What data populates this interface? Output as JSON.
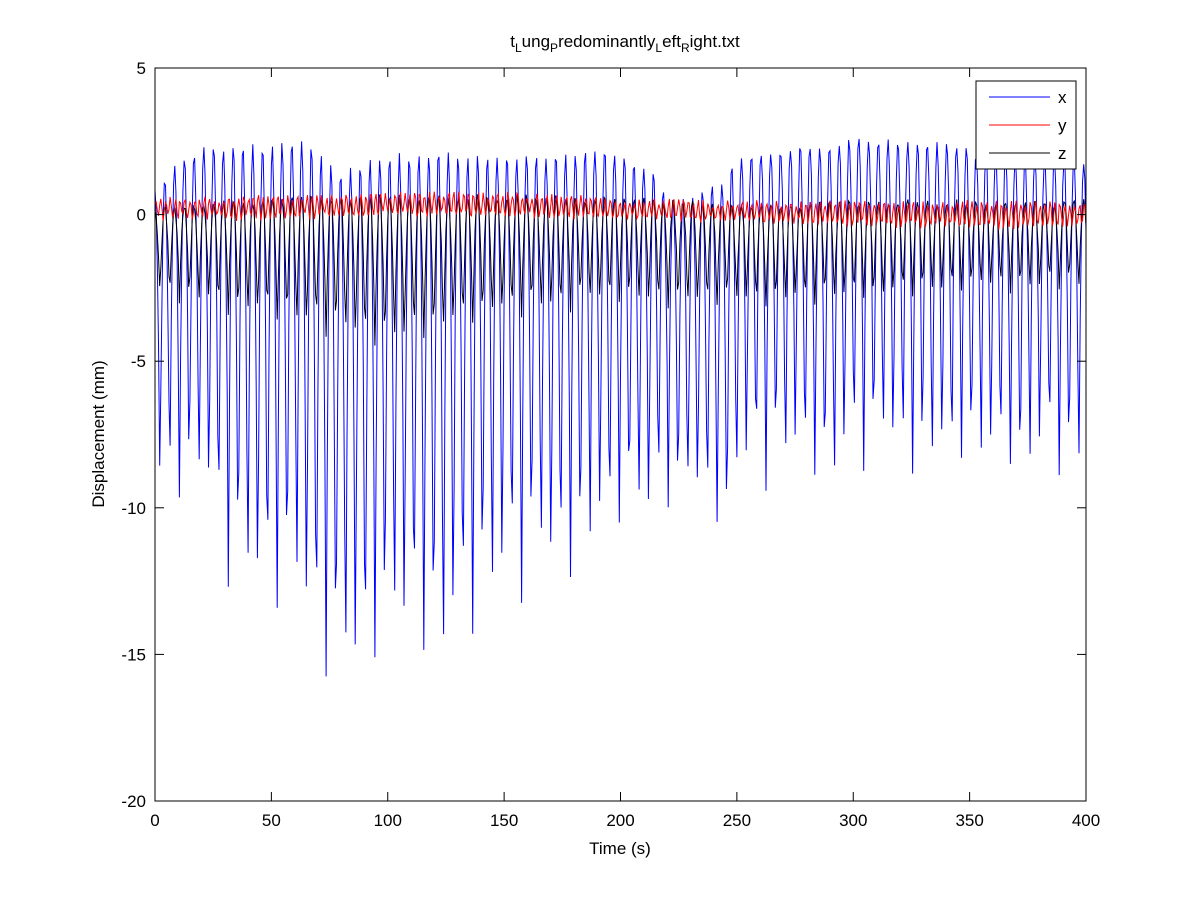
{
  "chart_data": {
    "type": "line",
    "title_parts": [
      {
        "text": "t",
        "sub": false
      },
      {
        "text": "L",
        "sub": true
      },
      {
        "text": "ung",
        "sub": false
      },
      {
        "text": "P",
        "sub": true
      },
      {
        "text": "redominantly",
        "sub": false
      },
      {
        "text": "L",
        "sub": true
      },
      {
        "text": "eft",
        "sub": false
      },
      {
        "text": "R",
        "sub": true
      },
      {
        "text": "ight.txt",
        "sub": false
      }
    ],
    "xlabel": "Time (s)",
    "ylabel": "Displacement (mm)",
    "xlim": [
      0,
      400
    ],
    "ylim": [
      -20,
      5
    ],
    "xticks": [
      0,
      50,
      100,
      150,
      200,
      250,
      300,
      350,
      400
    ],
    "yticks": [
      5,
      0,
      -5,
      -10,
      -15,
      -20
    ],
    "grid": false,
    "legend_position": "top-right",
    "colors": {
      "x": "#0000ff",
      "y": "#ff0000",
      "z": "#000000"
    },
    "series": [
      {
        "name": "x",
        "description_of_shape": "breathing oscillation ~4.2 s period",
        "x": [
          0,
          5,
          10,
          15,
          20,
          25,
          30,
          35,
          40,
          45,
          50,
          55,
          60,
          65,
          70,
          75,
          80,
          85,
          90,
          95,
          100,
          110,
          120,
          125,
          130,
          140,
          150,
          160,
          170,
          180,
          190,
          200,
          210,
          215,
          220,
          230,
          240,
          245,
          250,
          260,
          270,
          280,
          290,
          300,
          310,
          320,
          330,
          340,
          350,
          360,
          370,
          380,
          390,
          400
        ],
        "peaks": [
          0.8,
          1.2,
          1.8,
          2.0,
          2.2,
          2.3,
          2.3,
          2.4,
          2.3,
          2.3,
          2.3,
          2.4,
          2.4,
          2.5,
          2.2,
          1.8,
          1.5,
          1.7,
          1.8,
          2.0,
          2.0,
          2.0,
          2.1,
          2.2,
          2.0,
          2.0,
          2.0,
          2.0,
          2.0,
          2.0,
          2.3,
          2.1,
          1.5,
          1.4,
          0.5,
          0.6,
          1.0,
          1.2,
          2.0,
          2.1,
          2.2,
          2.3,
          2.3,
          2.6,
          2.5,
          2.5,
          2.4,
          2.4,
          2.2,
          2.1,
          2.0,
          2.0,
          1.9,
          1.8
        ],
        "troughs": [
          -10.0,
          -9.5,
          -9.6,
          -9.7,
          -9.8,
          -10.2,
          -11.8,
          -12.8,
          -13.0,
          -13.5,
          -13.2,
          -13.0,
          -12.8,
          -14.5,
          -15.5,
          -16.2,
          -16.6,
          -15.8,
          -16.4,
          -15.2,
          -15.0,
          -14.8,
          -15.5,
          -15.8,
          -14.2,
          -13.5,
          -12.8,
          -12.6,
          -12.5,
          -12.0,
          -11.5,
          -11.0,
          -10.5,
          -10.4,
          -9.5,
          -10.2,
          -10.5,
          -11.4,
          -9.5,
          -8.8,
          -9.0,
          -8.5,
          -10.0,
          -8.6,
          -8.5,
          -8.4,
          -8.8,
          -8.5,
          -8.6,
          -8.5,
          -9.2,
          -8.6,
          -8.4,
          -8.8
        ]
      },
      {
        "name": "y",
        "x": [
          0,
          50,
          100,
          150,
          200,
          250,
          300,
          350,
          400
        ],
        "peaks": [
          0.5,
          0.6,
          0.7,
          0.7,
          0.5,
          0.4,
          0.4,
          0.4,
          0.4
        ],
        "troughs": [
          -0.1,
          -0.1,
          0.0,
          0.0,
          -0.1,
          -0.2,
          -0.3,
          -0.4,
          -0.4
        ]
      },
      {
        "name": "z",
        "x": [
          0,
          50,
          100,
          150,
          200,
          250,
          300,
          350,
          400
        ],
        "peaks": [
          0.2,
          0.5,
          0.6,
          0.6,
          0.5,
          0.3,
          0.4,
          0.4,
          0.4
        ],
        "troughs": [
          -2.8,
          -3.6,
          -4.6,
          -3.5,
          -3.0,
          -3.2,
          -3.0,
          -2.6,
          -2.6
        ]
      }
    ],
    "period_s": 4.2,
    "sample_step_s": 0.5
  }
}
